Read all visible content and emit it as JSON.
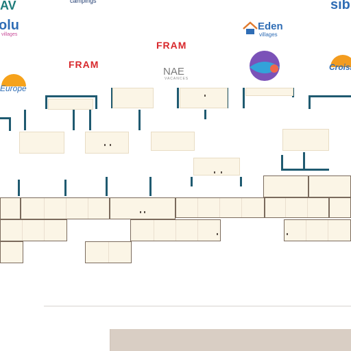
{
  "logos": {
    "top_left": "AV",
    "campings": "campings",
    "top_right": "sib",
    "left_big": "olu",
    "left_sub": "villages",
    "eden_title": "Eden",
    "eden_sub": "villages",
    "fram_top": "FRAM",
    "fram_mid": "FRAM",
    "nae_title": "NAE",
    "nae_sub": "VACANCES",
    "europe": "Europe",
    "croisi": "Croisi"
  },
  "colors": {
    "cabinet": "#fbf5e6",
    "post": "#1f5a70",
    "panel": "#d9cec4"
  }
}
